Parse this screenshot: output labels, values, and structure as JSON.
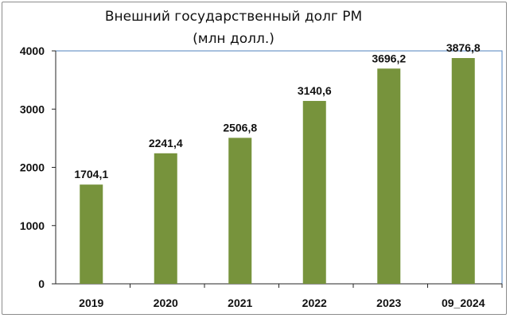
{
  "chart_data": {
    "type": "bar",
    "title_line1": "Внешний государственный долг РМ",
    "title_line2": "(млн долл.)",
    "categories": [
      "2019",
      "2020",
      "2021",
      "2022",
      "2023",
      "09_2024"
    ],
    "values": [
      1704.1,
      2241.4,
      2506.8,
      3140.6,
      3696.2,
      3876.8
    ],
    "data_labels": [
      "1704,1",
      "2241,4",
      "2506,8",
      "3140,6",
      "3696,2",
      "3876,8"
    ],
    "yticks": [
      0,
      1000,
      2000,
      3000,
      4000
    ],
    "ytick_labels": [
      "0",
      "1000",
      "2000",
      "3000",
      "4000"
    ],
    "ylim": [
      0,
      4000
    ],
    "xlabel": "",
    "ylabel": "",
    "grid": false,
    "legend": "none",
    "bar_color": "#77933c",
    "plot_border_color": "#4f81bd"
  }
}
